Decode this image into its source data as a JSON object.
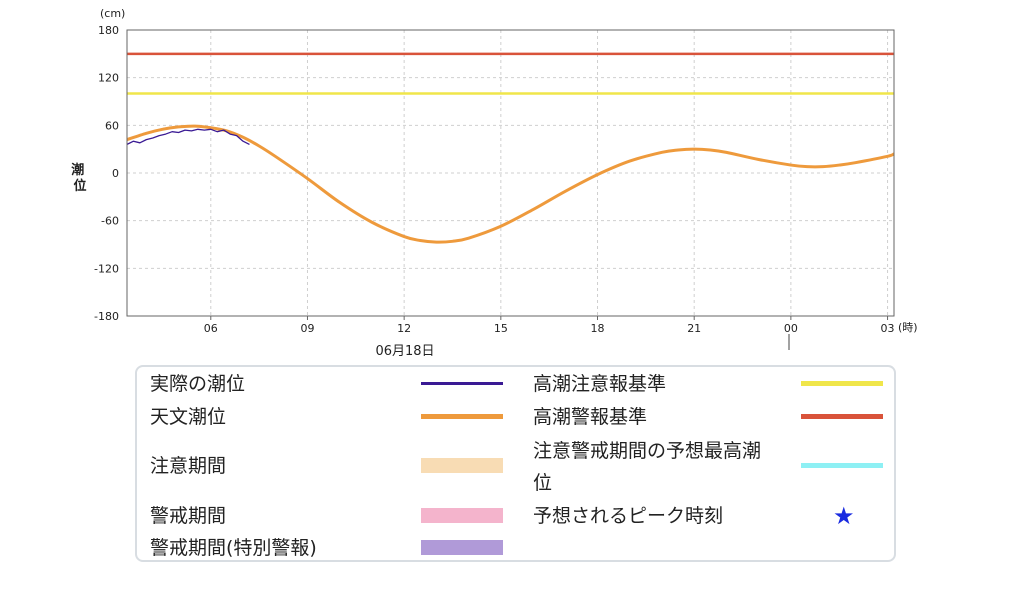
{
  "chart_data": {
    "type": "line",
    "y_unit": "(cm)",
    "x_unit": "(時)",
    "ylabel": "潮位",
    "date_label": "06月18日",
    "ylim": [
      -180,
      180
    ],
    "y_ticks": [
      -180,
      -120,
      -60,
      0,
      60,
      120,
      180
    ],
    "x_range_hours": [
      3.4,
      27.2
    ],
    "x_ticks": [
      {
        "hour": 6,
        "label": "06"
      },
      {
        "hour": 9,
        "label": "09"
      },
      {
        "hour": 12,
        "label": "12"
      },
      {
        "hour": 15,
        "label": "15"
      },
      {
        "hour": 18,
        "label": "18"
      },
      {
        "hour": 21,
        "label": "21"
      },
      {
        "hour": 24,
        "label": "00"
      },
      {
        "hour": 27,
        "label": "03"
      }
    ],
    "grid": true,
    "series": [
      {
        "name": "天文潮位",
        "color": "#ee9a3c",
        "x": [
          3.4,
          4.0,
          4.5,
          5.0,
          5.5,
          6.0,
          6.5,
          7.0,
          7.5,
          8.0,
          9.0,
          10.0,
          11.0,
          12.0,
          12.5,
          13.0,
          13.5,
          14.0,
          15.0,
          16.0,
          17.0,
          18.0,
          19.0,
          20.0,
          20.5,
          21.0,
          21.5,
          22.0,
          23.0,
          24.0,
          24.5,
          25.0,
          25.5,
          26.0,
          27.0,
          27.2
        ],
        "y": [
          42,
          50,
          55,
          58,
          59,
          57,
          53,
          45,
          34,
          21,
          -7,
          -37,
          -62,
          -80,
          -85,
          -87,
          -86,
          -82,
          -67,
          -46,
          -23,
          -2,
          15,
          26,
          29,
          30,
          29,
          26,
          17,
          10,
          8,
          8,
          10,
          13,
          21,
          24
        ]
      },
      {
        "name": "実際の潮位",
        "color": "#3a1a94",
        "x": [
          3.4,
          3.6,
          3.8,
          4.0,
          4.2,
          4.4,
          4.6,
          4.8,
          5.0,
          5.2,
          5.4,
          5.6,
          5.8,
          6.0,
          6.2,
          6.4,
          6.6,
          6.8,
          7.0,
          7.2
        ],
        "y": [
          36,
          40,
          38,
          42,
          44,
          47,
          49,
          52,
          51,
          54,
          53,
          55,
          54,
          55,
          52,
          54,
          49,
          47,
          40,
          36
        ]
      },
      {
        "name": "高潮注意報基準",
        "color": "#f0e64a",
        "x": [
          3.4,
          27.2
        ],
        "y": [
          100,
          100
        ]
      },
      {
        "name": "高潮警報基準",
        "color": "#d9533a",
        "x": [
          3.4,
          27.2
        ],
        "y": [
          150,
          150
        ]
      }
    ]
  },
  "legend": {
    "items": [
      {
        "label": "実際の潮位",
        "kind": "line",
        "color": "#3a1a94"
      },
      {
        "label": "天文潮位",
        "kind": "line",
        "color": "#ee9a3c"
      },
      {
        "label": "注意期間",
        "kind": "box",
        "color": "#f8dcb4"
      },
      {
        "label": "警戒期間",
        "kind": "box",
        "color": "#f4b4cc"
      },
      {
        "label": "警戒期間(特別警報)",
        "kind": "box",
        "color": "#b09ad8"
      },
      {
        "label": "高潮注意報基準",
        "kind": "line",
        "color": "#f0e64a"
      },
      {
        "label": "高潮警報基準",
        "kind": "line",
        "color": "#d9533a"
      },
      {
        "label": "注意警戒期間の予想最高潮",
        "kind": "line",
        "color": "#8ef0f4"
      },
      {
        "label": "位",
        "kind": "text"
      },
      {
        "label": "予想されるピーク時刻",
        "kind": "star",
        "color": "#1a2be0"
      }
    ],
    "star_glyph": "★"
  }
}
